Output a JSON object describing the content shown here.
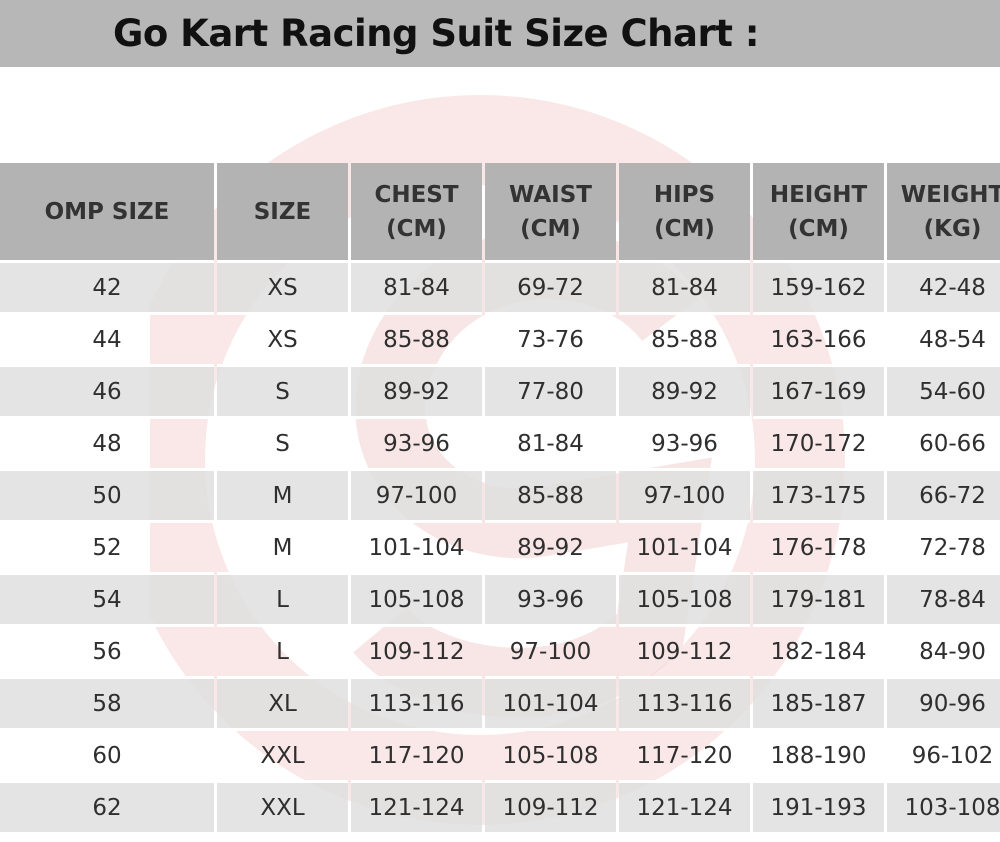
{
  "title": "Go Kart Racing Suit Size Chart :",
  "colors": {
    "title_bar": "#b7b7b7",
    "header_bg": "#b3b3b3",
    "stripe_bg": "#dedede",
    "watermark": "#f2c4c4"
  },
  "chart_data": {
    "type": "table",
    "columns": [
      "OMP SIZE",
      "SIZE",
      "CHEST\n(CM)",
      "WAIST\n(CM)",
      "HIPS\n(CM)",
      "HEIGHT\n(CM)",
      "WEIGHT\n(KG)"
    ],
    "rows": [
      [
        "42",
        "XS",
        "81-84",
        "69-72",
        "81-84",
        "159-162",
        "42-48"
      ],
      [
        "44",
        "XS",
        "85-88",
        "73-76",
        "85-88",
        "163-166",
        "48-54"
      ],
      [
        "46",
        "S",
        "89-92",
        "77-80",
        "89-92",
        "167-169",
        "54-60"
      ],
      [
        "48",
        "S",
        "93-96",
        "81-84",
        "93-96",
        "170-172",
        "60-66"
      ],
      [
        "50",
        "M",
        "97-100",
        "85-88",
        "97-100",
        "173-175",
        "66-72"
      ],
      [
        "52",
        "M",
        "101-104",
        "89-92",
        "101-104",
        "176-178",
        "72-78"
      ],
      [
        "54",
        "L",
        "105-108",
        "93-96",
        "105-108",
        "179-181",
        "78-84"
      ],
      [
        "56",
        "L",
        "109-112",
        "97-100",
        "109-112",
        "182-184",
        "84-90"
      ],
      [
        "58",
        "XL",
        "113-116",
        "101-104",
        "113-116",
        "185-187",
        "90-96"
      ],
      [
        "60",
        "XXL",
        "117-120",
        "105-108",
        "117-120",
        "188-190",
        "96-102"
      ],
      [
        "62",
        "XXL",
        "121-124",
        "109-112",
        "121-124",
        "191-193",
        "103-108"
      ]
    ]
  }
}
